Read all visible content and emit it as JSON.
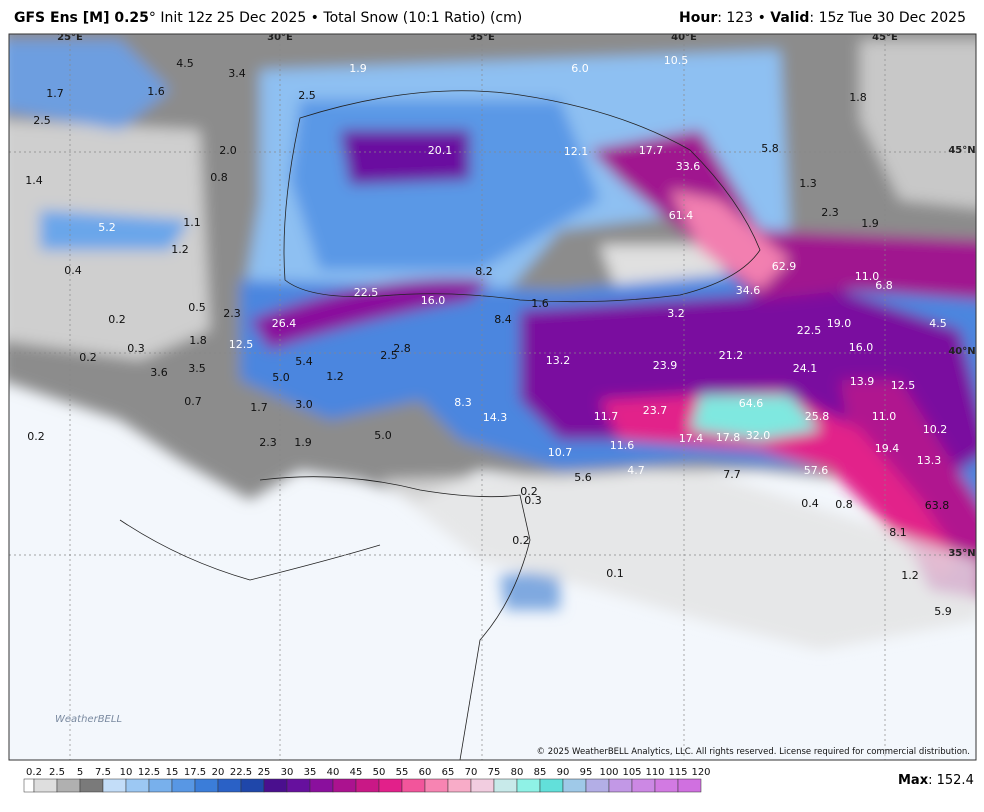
{
  "header": {
    "model": "GFS Ens [M] 0.25",
    "subtitle": "° Init 12z 25 Dec 2025 • Total Snow (10:1 Ratio) (cm)",
    "hour_label": "Hour",
    "hour_value": ": 123 • ",
    "valid_label": "Valid",
    "valid_value": ": 15z Tue 30 Dec 2025"
  },
  "map": {
    "grid_labels": [
      "25°E",
      "30°E",
      "35°E",
      "40°E",
      "45°E",
      "45°N",
      "40°N",
      "35°N"
    ],
    "labels": [
      "4.5",
      "3.4",
      "1.9",
      "6.0",
      "10.5",
      "1.7",
      "1.6",
      "2.5",
      "1.8",
      "2.5",
      "2.0",
      "20.1",
      "12.1",
      "17.7",
      "5.8",
      "33.6",
      "0.8",
      "1.4",
      "1.3",
      "2.3",
      "1.9",
      "61.4",
      "5.2",
      "1.1",
      "1.2",
      "0.4",
      "62.9",
      "11.0",
      "8.2",
      "6.8",
      "22.5",
      "16.0",
      "34.6",
      "1.6",
      "0.5",
      "2.3",
      "0.2",
      "26.4",
      "8.4",
      "3.2",
      "19.0",
      "4.5",
      "22.5",
      "1.8",
      "12.5",
      "0.3",
      "0.2",
      "2.8",
      "16.0",
      "2.5",
      "5.4",
      "13.2",
      "21.2",
      "3.6",
      "3.5",
      "23.9",
      "24.1",
      "5.0",
      "1.2",
      "13.9",
      "12.5",
      "0.7",
      "1.7",
      "3.0",
      "8.3",
      "64.6",
      "14.3",
      "11.7",
      "23.7",
      "25.8",
      "11.0",
      "0.2",
      "5.0",
      "2.3",
      "1.9",
      "10.2",
      "32.0",
      "17.4",
      "17.8",
      "11.6",
      "19.4",
      "10.7",
      "13.3",
      "4.7",
      "5.6",
      "7.7",
      "57.6",
      "0.2",
      "0.3",
      "0.4",
      "0.8",
      "63.8",
      "8.1",
      "0.2",
      "0.1",
      "1.2",
      "5.9"
    ],
    "logo": "WeatherBELL",
    "copyright": "© 2025 WeatherBELL Analytics, LLC. All rights reserved. License required for commercial distribution."
  },
  "colorbar": {
    "ticks": [
      "0.2",
      "2.5",
      "5",
      "7.5",
      "10",
      "12.5",
      "15",
      "17.5",
      "20",
      "22.5",
      "25",
      "30",
      "35",
      "40",
      "45",
      "50",
      "55",
      "60",
      "65",
      "70",
      "75",
      "80",
      "85",
      "90",
      "95",
      "100",
      "105",
      "110",
      "115",
      "120"
    ],
    "colors": [
      "#ffffff",
      "#dedede",
      "#b0b0b0",
      "#7a7a7a",
      "#c3ddf8",
      "#9cc8f3",
      "#78b0ec",
      "#5897e4",
      "#3b7dd9",
      "#2a61c6",
      "#1f47aa",
      "#4a0f8e",
      "#66109e",
      "#8a0f9d",
      "#ab128f",
      "#c91886",
      "#e2208a",
      "#f2559b",
      "#f784b2",
      "#f8acc8",
      "#f2cde0",
      "#c8eaea",
      "#8ff2e6",
      "#62e0da",
      "#9fc9e8",
      "#b3aee6",
      "#c298e6",
      "#cc88e4",
      "#d27ae2",
      "#d070e0"
    ],
    "max_label": "Max",
    "max_value": ": 152.4"
  }
}
